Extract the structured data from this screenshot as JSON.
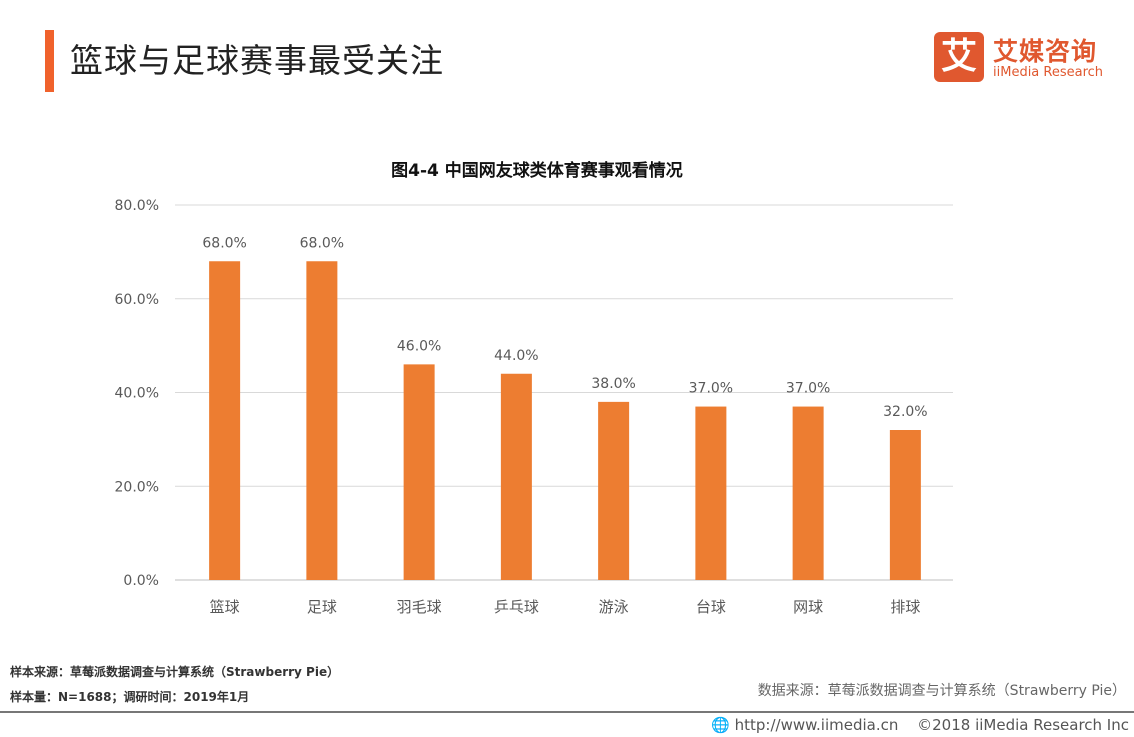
{
  "header": {
    "title": "篮球与足球赛事最受关注",
    "accent_color": "#F0622C"
  },
  "logo": {
    "mark": "艾",
    "name_cn": "艾媒咨询",
    "name_en": "iiMedia Research",
    "color": "#E0582F"
  },
  "chart_data": {
    "type": "bar",
    "title": "图4-4 中国网友球类体育赛事观看情况",
    "categories": [
      "篮球",
      "足球",
      "羽毛球",
      "乒乓球",
      "游泳",
      "台球",
      "网球",
      "排球"
    ],
    "values": [
      68.0,
      68.0,
      46.0,
      44.0,
      38.0,
      37.0,
      37.0,
      32.0
    ],
    "value_labels": [
      "68.0%",
      "68.0%",
      "46.0%",
      "44.0%",
      "38.0%",
      "37.0%",
      "37.0%",
      "32.0%"
    ],
    "yticks": [
      "0.0%",
      "20.0%",
      "40.0%",
      "60.0%",
      "80.0%"
    ],
    "ylim": [
      0,
      80
    ],
    "grid": true,
    "bar_color": "#ED7D31",
    "xlabel": "",
    "ylabel": ""
  },
  "notes": {
    "sample_source": "样本来源：草莓派数据调查与计算系统（Strawberry Pie）",
    "sample_size": "样本量：N=1688；调研时间：2019年1月",
    "data_source": "数据来源：草莓派数据调查与计算系统（Strawberry Pie）"
  },
  "footer": {
    "icon": "globe-icon",
    "url": "http://www.iimedia.cn",
    "copyright": "©2018  iiMedia Research Inc"
  }
}
